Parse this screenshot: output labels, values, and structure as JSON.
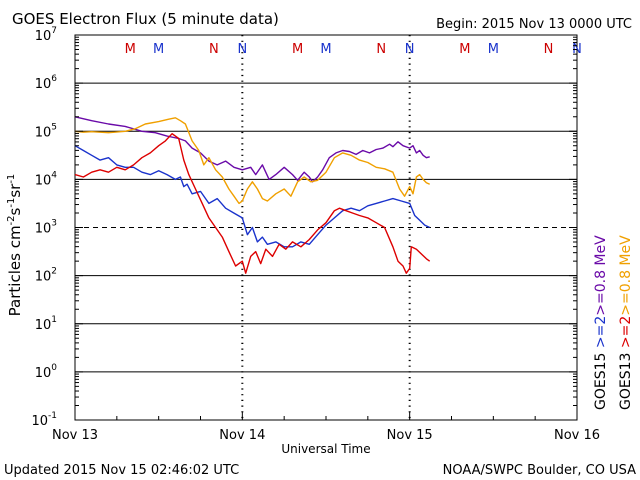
{
  "chart_data": {
    "type": "line",
    "title": "GOES Electron Flux (5 minute data)",
    "begin_label": "Begin: 2015 Nov 13 0000 UTC",
    "xlabel": "Universal Time",
    "ylabel_parts": [
      "Particles cm",
      "-2",
      "s",
      "-1",
      "sr",
      "-1"
    ],
    "updated": "Updated 2015 Nov 15 02:46:02 UTC",
    "credit": "NOAA/SWPC Boulder, CO USA",
    "x_unit": "days since 2015 Nov 13 00:00 UTC",
    "xlim": [
      0,
      3
    ],
    "ylim_log10": [
      -1,
      7
    ],
    "x_ticks": [
      {
        "x": 0,
        "label": "Nov 13"
      },
      {
        "x": 1,
        "label": "Nov 14"
      },
      {
        "x": 2,
        "label": "Nov 15"
      },
      {
        "x": 3,
        "label": "Nov 16"
      }
    ],
    "y_ticks": [
      {
        "exp": 7,
        "base": "10",
        "sup": "7"
      },
      {
        "exp": 6,
        "base": "10",
        "sup": "6"
      },
      {
        "exp": 5,
        "base": "10",
        "sup": "5"
      },
      {
        "exp": 4,
        "base": "10",
        "sup": "4"
      },
      {
        "exp": 3,
        "base": "10",
        "sup": "3"
      },
      {
        "exp": 2,
        "base": "10",
        "sup": "2"
      },
      {
        "exp": 1,
        "base": "10",
        "sup": "1"
      },
      {
        "exp": 0,
        "base": "10",
        "sup": "0"
      },
      {
        "exp": -1,
        "base": "10",
        "sup": "-1"
      }
    ],
    "threshold_log10": 3,
    "day_boundaries": [
      1,
      2
    ],
    "mn_markers": [
      {
        "x": 0.33,
        "label": "M",
        "color": "#cc0000"
      },
      {
        "x": 0.5,
        "label": "M",
        "color": "#1a33cc"
      },
      {
        "x": 0.83,
        "label": "N",
        "color": "#cc0000"
      },
      {
        "x": 1.0,
        "label": "N",
        "color": "#1a33cc"
      },
      {
        "x": 1.33,
        "label": "M",
        "color": "#cc0000"
      },
      {
        "x": 1.5,
        "label": "M",
        "color": "#1a33cc"
      },
      {
        "x": 1.83,
        "label": "N",
        "color": "#cc0000"
      },
      {
        "x": 2.0,
        "label": "N",
        "color": "#1a33cc"
      },
      {
        "x": 2.33,
        "label": "M",
        "color": "#cc0000"
      },
      {
        "x": 2.5,
        "label": "M",
        "color": "#1a33cc"
      },
      {
        "x": 2.83,
        "label": "N",
        "color": "#cc0000"
      },
      {
        "x": 3.0,
        "label": "N",
        "color": "#1a33cc"
      }
    ],
    "legend": {
      "col1": [
        {
          "text": ">=0.8 MeV",
          "color": "#6a0aa8"
        },
        {
          "text": ">=2",
          "color": "#1a33cc"
        },
        {
          "text": "GOES15",
          "color": "#000000"
        }
      ],
      "col2": [
        {
          "text": ">=0.8 MeV",
          "color": "#f0a000"
        },
        {
          "text": ">=2",
          "color": "#dd0000"
        },
        {
          "text": "GOES13",
          "color": "#000000"
        }
      ]
    },
    "series": [
      {
        "name": "GOES15 >=0.8 MeV",
        "color": "#6a0aa8",
        "log10": [
          [
            0.0,
            5.3
          ],
          [
            0.1,
            5.22
          ],
          [
            0.2,
            5.15
          ],
          [
            0.3,
            5.1
          ],
          [
            0.4,
            5.0
          ],
          [
            0.48,
            4.97
          ],
          [
            0.55,
            4.9
          ],
          [
            0.62,
            4.85
          ],
          [
            0.66,
            4.8
          ],
          [
            0.7,
            4.65
          ],
          [
            0.75,
            4.55
          ],
          [
            0.8,
            4.38
          ],
          [
            0.85,
            4.3
          ],
          [
            0.9,
            4.38
          ],
          [
            0.95,
            4.25
          ],
          [
            1.0,
            4.2
          ],
          [
            1.05,
            4.25
          ],
          [
            1.08,
            4.1
          ],
          [
            1.12,
            4.3
          ],
          [
            1.16,
            4.0
          ],
          [
            1.2,
            4.1
          ],
          [
            1.25,
            4.25
          ],
          [
            1.3,
            4.1
          ],
          [
            1.33,
            3.98
          ],
          [
            1.37,
            4.15
          ],
          [
            1.4,
            4.05
          ],
          [
            1.42,
            3.95
          ],
          [
            1.45,
            4.05
          ],
          [
            1.48,
            4.2
          ],
          [
            1.52,
            4.45
          ],
          [
            1.56,
            4.55
          ],
          [
            1.6,
            4.6
          ],
          [
            1.64,
            4.58
          ],
          [
            1.68,
            4.52
          ],
          [
            1.72,
            4.6
          ],
          [
            1.76,
            4.55
          ],
          [
            1.8,
            4.62
          ],
          [
            1.84,
            4.65
          ],
          [
            1.88,
            4.73
          ],
          [
            1.9,
            4.68
          ],
          [
            1.93,
            4.78
          ],
          [
            1.96,
            4.7
          ],
          [
            2.0,
            4.65
          ],
          [
            2.02,
            4.7
          ],
          [
            2.04,
            4.55
          ],
          [
            2.06,
            4.6
          ],
          [
            2.08,
            4.5
          ],
          [
            2.1,
            4.45
          ],
          [
            2.12,
            4.47
          ]
        ]
      },
      {
        "name": "GOES13 >=0.8 MeV",
        "color": "#f0a000",
        "log10": [
          [
            0.0,
            5.0
          ],
          [
            0.05,
            4.98
          ],
          [
            0.1,
            4.99
          ],
          [
            0.2,
            4.97
          ],
          [
            0.3,
            5.0
          ],
          [
            0.36,
            5.05
          ],
          [
            0.42,
            5.15
          ],
          [
            0.5,
            5.2
          ],
          [
            0.56,
            5.25
          ],
          [
            0.6,
            5.28
          ],
          [
            0.63,
            5.22
          ],
          [
            0.66,
            5.15
          ],
          [
            0.7,
            4.8
          ],
          [
            0.74,
            4.6
          ],
          [
            0.77,
            4.3
          ],
          [
            0.8,
            4.45
          ],
          [
            0.84,
            4.2
          ],
          [
            0.88,
            4.05
          ],
          [
            0.92,
            3.8
          ],
          [
            0.95,
            3.65
          ],
          [
            0.98,
            3.5
          ],
          [
            1.0,
            3.55
          ],
          [
            1.03,
            3.8
          ],
          [
            1.06,
            3.95
          ],
          [
            1.09,
            3.8
          ],
          [
            1.12,
            3.6
          ],
          [
            1.15,
            3.55
          ],
          [
            1.2,
            3.7
          ],
          [
            1.25,
            3.8
          ],
          [
            1.29,
            3.65
          ],
          [
            1.33,
            3.95
          ],
          [
            1.37,
            4.05
          ],
          [
            1.41,
            3.95
          ],
          [
            1.45,
            3.98
          ],
          [
            1.5,
            4.15
          ],
          [
            1.55,
            4.45
          ],
          [
            1.6,
            4.55
          ],
          [
            1.65,
            4.5
          ],
          [
            1.7,
            4.4
          ],
          [
            1.75,
            4.35
          ],
          [
            1.8,
            4.25
          ],
          [
            1.85,
            4.22
          ],
          [
            1.9,
            4.15
          ],
          [
            1.94,
            3.8
          ],
          [
            1.97,
            3.65
          ],
          [
            2.0,
            3.85
          ],
          [
            2.02,
            3.7
          ],
          [
            2.04,
            4.05
          ],
          [
            2.06,
            4.1
          ],
          [
            2.08,
            4.0
          ],
          [
            2.1,
            3.93
          ],
          [
            2.12,
            3.9
          ]
        ]
      },
      {
        "name": "GOES15 >=2 MeV",
        "color": "#1a33cc",
        "log10": [
          [
            0.0,
            4.7
          ],
          [
            0.05,
            4.6
          ],
          [
            0.1,
            4.5
          ],
          [
            0.15,
            4.4
          ],
          [
            0.2,
            4.45
          ],
          [
            0.25,
            4.3
          ],
          [
            0.3,
            4.25
          ],
          [
            0.35,
            4.25
          ],
          [
            0.4,
            4.15
          ],
          [
            0.45,
            4.1
          ],
          [
            0.5,
            4.18
          ],
          [
            0.55,
            4.1
          ],
          [
            0.6,
            4.0
          ],
          [
            0.63,
            4.05
          ],
          [
            0.65,
            3.85
          ],
          [
            0.67,
            3.9
          ],
          [
            0.7,
            3.7
          ],
          [
            0.75,
            3.75
          ],
          [
            0.8,
            3.5
          ],
          [
            0.85,
            3.6
          ],
          [
            0.9,
            3.4
          ],
          [
            0.95,
            3.3
          ],
          [
            1.0,
            3.2
          ],
          [
            1.03,
            2.85
          ],
          [
            1.06,
            3.0
          ],
          [
            1.09,
            2.7
          ],
          [
            1.12,
            2.8
          ],
          [
            1.15,
            2.65
          ],
          [
            1.2,
            2.7
          ],
          [
            1.25,
            2.6
          ],
          [
            1.3,
            2.6
          ],
          [
            1.35,
            2.7
          ],
          [
            1.4,
            2.65
          ],
          [
            1.45,
            2.85
          ],
          [
            1.5,
            3.05
          ],
          [
            1.55,
            3.2
          ],
          [
            1.6,
            3.35
          ],
          [
            1.65,
            3.4
          ],
          [
            1.7,
            3.35
          ],
          [
            1.75,
            3.45
          ],
          [
            1.8,
            3.5
          ],
          [
            1.85,
            3.55
          ],
          [
            1.9,
            3.6
          ],
          [
            1.95,
            3.55
          ],
          [
            2.0,
            3.5
          ],
          [
            2.03,
            3.25
          ],
          [
            2.06,
            3.15
          ],
          [
            2.09,
            3.05
          ],
          [
            2.12,
            3.0
          ]
        ]
      },
      {
        "name": "GOES13 >=2 MeV",
        "color": "#dd0000",
        "log10": [
          [
            0.0,
            4.1
          ],
          [
            0.05,
            4.05
          ],
          [
            0.1,
            4.15
          ],
          [
            0.15,
            4.2
          ],
          [
            0.2,
            4.15
          ],
          [
            0.25,
            4.25
          ],
          [
            0.3,
            4.2
          ],
          [
            0.35,
            4.3
          ],
          [
            0.4,
            4.45
          ],
          [
            0.45,
            4.55
          ],
          [
            0.5,
            4.7
          ],
          [
            0.54,
            4.8
          ],
          [
            0.58,
            4.95
          ],
          [
            0.62,
            4.85
          ],
          [
            0.65,
            4.4
          ],
          [
            0.68,
            4.1
          ],
          [
            0.72,
            3.8
          ],
          [
            0.76,
            3.5
          ],
          [
            0.8,
            3.2
          ],
          [
            0.84,
            3.0
          ],
          [
            0.88,
            2.8
          ],
          [
            0.92,
            2.5
          ],
          [
            0.96,
            2.2
          ],
          [
            1.0,
            2.3
          ],
          [
            1.02,
            2.05
          ],
          [
            1.05,
            2.4
          ],
          [
            1.08,
            2.5
          ],
          [
            1.11,
            2.25
          ],
          [
            1.14,
            2.55
          ],
          [
            1.18,
            2.4
          ],
          [
            1.22,
            2.65
          ],
          [
            1.26,
            2.55
          ],
          [
            1.3,
            2.7
          ],
          [
            1.35,
            2.6
          ],
          [
            1.4,
            2.75
          ],
          [
            1.45,
            2.95
          ],
          [
            1.5,
            3.1
          ],
          [
            1.55,
            3.35
          ],
          [
            1.58,
            3.4
          ],
          [
            1.62,
            3.35
          ],
          [
            1.66,
            3.3
          ],
          [
            1.7,
            3.25
          ],
          [
            1.75,
            3.2
          ],
          [
            1.8,
            3.1
          ],
          [
            1.85,
            3.0
          ],
          [
            1.9,
            2.6
          ],
          [
            1.93,
            2.3
          ],
          [
            1.96,
            2.2
          ],
          [
            1.98,
            2.05
          ],
          [
            2.0,
            2.15
          ],
          [
            2.01,
            2.6
          ],
          [
            2.04,
            2.55
          ],
          [
            2.07,
            2.45
          ],
          [
            2.1,
            2.35
          ],
          [
            2.12,
            2.3
          ]
        ]
      }
    ]
  }
}
